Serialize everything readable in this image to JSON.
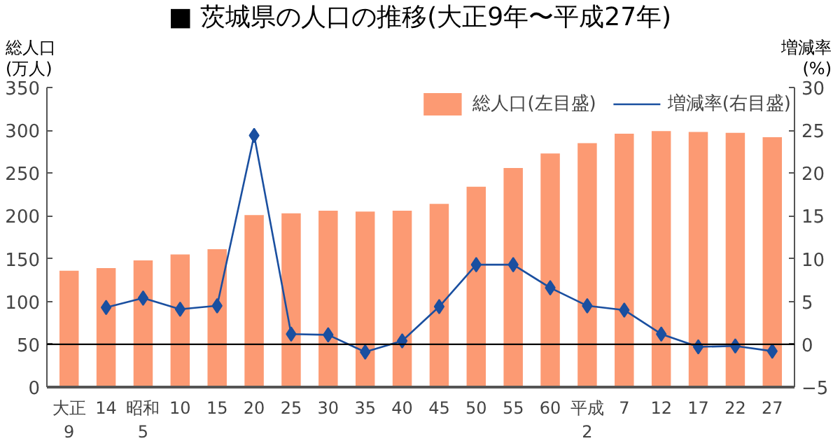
{
  "chart_data": {
    "type": "bar",
    "title": "■ 茨城県の人口の推移(大正9年〜平成27年)",
    "ylabel": "総人口\n(万人)",
    "y2label": "増減率\n(%)",
    "categories": [
      "大正\n9",
      "14",
      "昭和\n5",
      "10",
      "15",
      "20",
      "25",
      "30",
      "35",
      "40",
      "45",
      "50",
      "55",
      "60",
      "平成\n2",
      "7",
      "12",
      "17",
      "22",
      "27"
    ],
    "series": [
      {
        "name": "総人口(左目盛)",
        "color": "#fc9a73",
        "values": [
          136,
          139,
          148,
          155,
          161,
          201,
          203,
          206,
          205,
          206,
          214,
          234,
          256,
          273,
          285,
          296,
          299,
          298,
          297,
          292
        ]
      },
      {
        "name": "増減率(右目盛)",
        "type": "line",
        "axis": "y2",
        "color": "#1a4fa0",
        "marker": "diamond",
        "values": [
          null,
          4.3,
          5.4,
          4.1,
          4.5,
          24.4,
          1.2,
          1.1,
          -0.9,
          0.4,
          4.4,
          9.3,
          9.3,
          6.6,
          4.5,
          4.0,
          1.2,
          -0.3,
          -0.2,
          -0.8
        ]
      }
    ],
    "ylim": [
      0,
      350
    ],
    "yticks": [
      0,
      50,
      100,
      150,
      200,
      250,
      300,
      350
    ],
    "y2lim": [
      -5,
      30
    ],
    "y2ticks": [
      -5,
      0,
      5,
      10,
      15,
      20,
      25,
      30
    ],
    "ref_lines": [
      {
        "axis": "y2",
        "value": 0,
        "color": "#000000"
      }
    ],
    "grid": false,
    "legend": "top right"
  }
}
